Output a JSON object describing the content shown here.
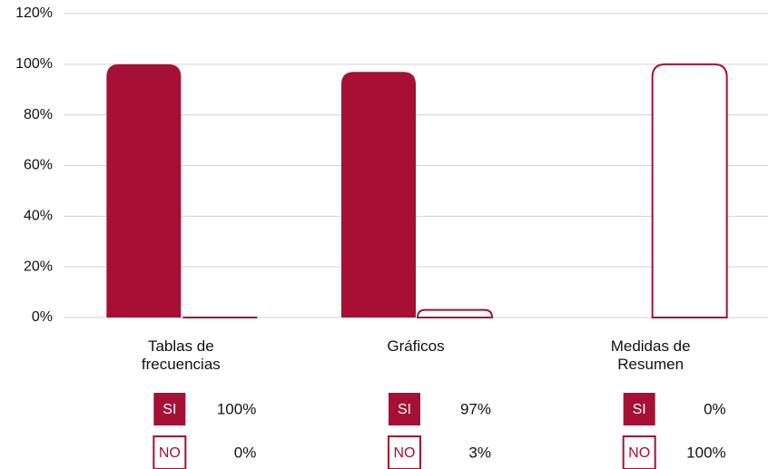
{
  "chart_data": {
    "type": "bar",
    "categories": [
      "Tablas de frecuencias",
      "Gráficos",
      "Medidas de Resumen"
    ],
    "series": [
      {
        "name": "SI",
        "color": "#a51034",
        "fill": "solid",
        "values": [
          100,
          97,
          0
        ],
        "value_labels": [
          "100%",
          "97%",
          "0%"
        ]
      },
      {
        "name": "NO",
        "color": "#a51034",
        "fill": "outline",
        "values": [
          0,
          3,
          100
        ],
        "value_labels": [
          "0%",
          "3%",
          "100%"
        ]
      }
    ],
    "ylim": [
      0,
      120
    ],
    "yticks": [
      {
        "value": 0,
        "label": "0%"
      },
      {
        "value": 20,
        "label": "20%"
      },
      {
        "value": 40,
        "label": "40%"
      },
      {
        "value": 60,
        "label": "60%"
      },
      {
        "value": 80,
        "label": "80%"
      },
      {
        "value": 100,
        "label": "100%"
      },
      {
        "value": 120,
        "label": "120%"
      }
    ],
    "grid": true
  }
}
